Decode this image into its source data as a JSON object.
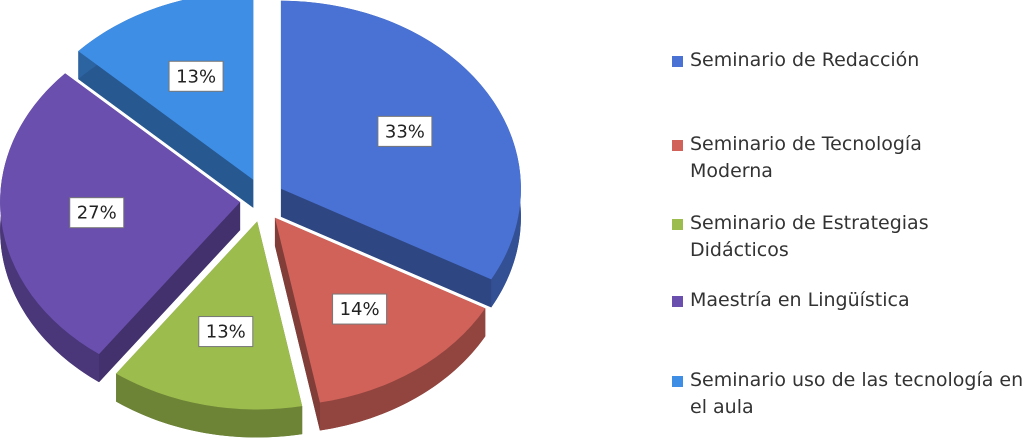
{
  "chart_data": {
    "type": "pie",
    "categories": [
      "Seminario de Redacción",
      "Seminario de Tecnología Moderna",
      "Seminario de Estrategias Didácticos",
      "Maestría en Lingüística",
      "Seminario uso de las tecnología en el aula"
    ],
    "values": [
      33,
      14,
      13,
      27,
      13
    ],
    "value_labels": [
      "33%",
      "14%",
      "13%",
      "27%",
      "13%"
    ],
    "colors": [
      "#4a72d4",
      "#d0625a",
      "#9cbc4e",
      "#6a4fae",
      "#3f8ee6"
    ],
    "legend": "right"
  }
}
